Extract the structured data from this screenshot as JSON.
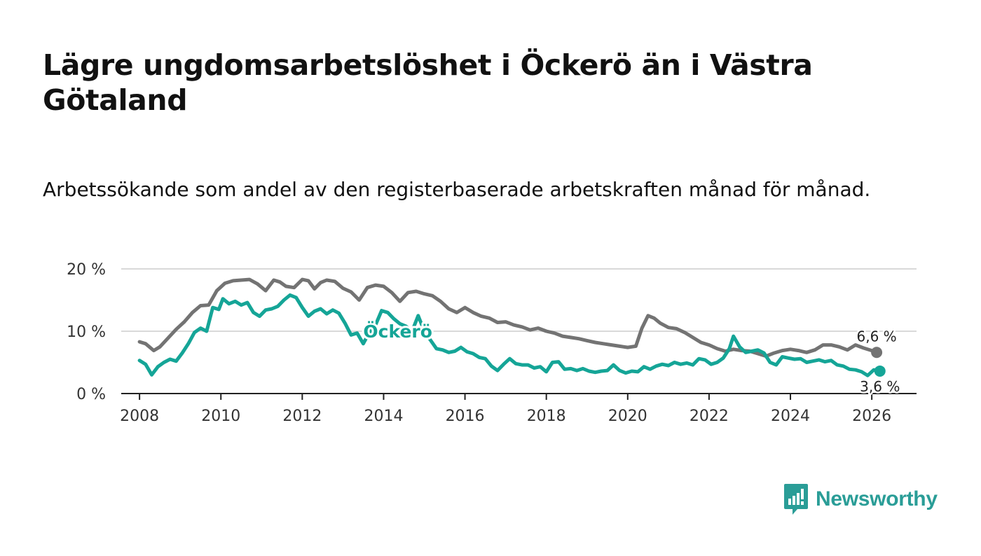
{
  "title": "Lägre ungdomsarbetslöshet i Öckerö än i Västra Götaland",
  "subtitle": "Arbetssökande som andel av den registerbaserade arbetskraften månad för månad.",
  "brand": {
    "name": "Newsworthy",
    "color": "#2a9d97"
  },
  "colors": {
    "gotaland": "#737373",
    "ockero": "#15a597",
    "grid": "#d9d9d9",
    "axis": "#222222"
  },
  "chart_data": {
    "type": "line",
    "title": "Lägre ungdomsarbetslöshet i Öckerö än i Västra Götaland",
    "subtitle": "Arbetssökande som andel av den registerbaserade arbetskraften månad för månad.",
    "xlabel": "",
    "ylabel": "",
    "xlim": [
      2007.55,
      2027.1
    ],
    "ylim": [
      0,
      20
    ],
    "grid": true,
    "legend": "inline",
    "x_ticks": [
      2008,
      2010,
      2012,
      2014,
      2016,
      2018,
      2020,
      2022,
      2024,
      2026
    ],
    "x_tick_labels": [
      "2008",
      "2010",
      "2012",
      "2014",
      "2016",
      "2018",
      "2020",
      "2022",
      "2024",
      "2026"
    ],
    "y_ticks": [
      0,
      10,
      20
    ],
    "y_tick_labels": [
      "0 %",
      "10 %",
      "20 %"
    ],
    "series": [
      {
        "name": "Västra Götaland",
        "color": "#737373",
        "end_label": "6,6 %",
        "label_at": [
          2010.0,
          2018.0
        ],
        "points": [
          [
            2008.0,
            8.3
          ],
          [
            2008.15,
            8.0
          ],
          [
            2008.35,
            6.9
          ],
          [
            2008.5,
            7.5
          ],
          [
            2008.7,
            8.9
          ],
          [
            2008.9,
            10.3
          ],
          [
            2009.1,
            11.5
          ],
          [
            2009.3,
            13.0
          ],
          [
            2009.5,
            14.1
          ],
          [
            2009.7,
            14.2
          ],
          [
            2009.9,
            16.5
          ],
          [
            2010.1,
            17.7
          ],
          [
            2010.3,
            18.1
          ],
          [
            2010.5,
            18.2
          ],
          [
            2010.7,
            18.3
          ],
          [
            2010.9,
            17.6
          ],
          [
            2011.1,
            16.5
          ],
          [
            2011.3,
            18.2
          ],
          [
            2011.45,
            17.9
          ],
          [
            2011.6,
            17.2
          ],
          [
            2011.8,
            17.0
          ],
          [
            2012.0,
            18.3
          ],
          [
            2012.15,
            18.1
          ],
          [
            2012.3,
            16.8
          ],
          [
            2012.45,
            17.8
          ],
          [
            2012.6,
            18.2
          ],
          [
            2012.8,
            18.0
          ],
          [
            2013.0,
            16.9
          ],
          [
            2013.2,
            16.3
          ],
          [
            2013.4,
            15.0
          ],
          [
            2013.6,
            17.0
          ],
          [
            2013.8,
            17.4
          ],
          [
            2014.0,
            17.2
          ],
          [
            2014.2,
            16.2
          ],
          [
            2014.4,
            14.8
          ],
          [
            2014.6,
            16.2
          ],
          [
            2014.8,
            16.4
          ],
          [
            2015.0,
            16.0
          ],
          [
            2015.2,
            15.7
          ],
          [
            2015.4,
            14.8
          ],
          [
            2015.6,
            13.6
          ],
          [
            2015.8,
            13.0
          ],
          [
            2016.0,
            13.8
          ],
          [
            2016.2,
            13.0
          ],
          [
            2016.4,
            12.4
          ],
          [
            2016.6,
            12.1
          ],
          [
            2016.8,
            11.4
          ],
          [
            2017.0,
            11.5
          ],
          [
            2017.2,
            11.0
          ],
          [
            2017.4,
            10.7
          ],
          [
            2017.6,
            10.2
          ],
          [
            2017.8,
            10.5
          ],
          [
            2018.0,
            10.0
          ],
          [
            2018.2,
            9.7
          ],
          [
            2018.4,
            9.2
          ],
          [
            2018.6,
            9.0
          ],
          [
            2018.8,
            8.8
          ],
          [
            2019.0,
            8.5
          ],
          [
            2019.2,
            8.2
          ],
          [
            2019.4,
            8.0
          ],
          [
            2019.6,
            7.8
          ],
          [
            2019.8,
            7.6
          ],
          [
            2020.0,
            7.4
          ],
          [
            2020.2,
            7.6
          ],
          [
            2020.35,
            10.5
          ],
          [
            2020.5,
            12.5
          ],
          [
            2020.65,
            12.1
          ],
          [
            2020.8,
            11.3
          ],
          [
            2021.0,
            10.6
          ],
          [
            2021.2,
            10.4
          ],
          [
            2021.4,
            9.8
          ],
          [
            2021.6,
            9.0
          ],
          [
            2021.8,
            8.2
          ],
          [
            2022.0,
            7.8
          ],
          [
            2022.2,
            7.2
          ],
          [
            2022.4,
            6.8
          ],
          [
            2022.6,
            7.1
          ],
          [
            2022.8,
            6.9
          ],
          [
            2023.0,
            6.8
          ],
          [
            2023.2,
            6.4
          ],
          [
            2023.4,
            6.0
          ],
          [
            2023.6,
            6.5
          ],
          [
            2023.8,
            6.9
          ],
          [
            2024.0,
            7.1
          ],
          [
            2024.2,
            6.9
          ],
          [
            2024.4,
            6.6
          ],
          [
            2024.6,
            7.0
          ],
          [
            2024.8,
            7.8
          ],
          [
            2025.0,
            7.8
          ],
          [
            2025.2,
            7.5
          ],
          [
            2025.4,
            7.0
          ],
          [
            2025.6,
            7.8
          ],
          [
            2025.8,
            7.3
          ],
          [
            2026.0,
            6.9
          ],
          [
            2026.12,
            6.6
          ]
        ]
      },
      {
        "name": "Öckerö",
        "color": "#15a597",
        "end_label": "3,6 %",
        "label_at": [
          2013.5,
          9.0
        ],
        "points": [
          [
            2008.0,
            5.3
          ],
          [
            2008.15,
            4.7
          ],
          [
            2008.3,
            3.0
          ],
          [
            2008.45,
            4.3
          ],
          [
            2008.6,
            5.0
          ],
          [
            2008.75,
            5.5
          ],
          [
            2008.9,
            5.2
          ],
          [
            2009.05,
            6.5
          ],
          [
            2009.2,
            8.0
          ],
          [
            2009.35,
            9.8
          ],
          [
            2009.5,
            10.5
          ],
          [
            2009.65,
            10.0
          ],
          [
            2009.8,
            13.8
          ],
          [
            2009.95,
            13.5
          ],
          [
            2010.05,
            15.2
          ],
          [
            2010.2,
            14.4
          ],
          [
            2010.35,
            14.8
          ],
          [
            2010.5,
            14.2
          ],
          [
            2010.65,
            14.6
          ],
          [
            2010.8,
            13.0
          ],
          [
            2010.95,
            12.4
          ],
          [
            2011.1,
            13.4
          ],
          [
            2011.25,
            13.6
          ],
          [
            2011.4,
            14.0
          ],
          [
            2011.55,
            15.0
          ],
          [
            2011.7,
            15.8
          ],
          [
            2011.85,
            15.4
          ],
          [
            2012.0,
            13.8
          ],
          [
            2012.15,
            12.4
          ],
          [
            2012.3,
            13.2
          ],
          [
            2012.45,
            13.6
          ],
          [
            2012.6,
            12.8
          ],
          [
            2012.75,
            13.4
          ],
          [
            2012.9,
            12.9
          ],
          [
            2013.05,
            11.3
          ],
          [
            2013.2,
            9.4
          ],
          [
            2013.35,
            9.7
          ],
          [
            2013.5,
            8.0
          ],
          [
            2013.65,
            9.8
          ],
          [
            2013.8,
            11.0
          ],
          [
            2013.95,
            13.3
          ],
          [
            2014.1,
            13.0
          ],
          [
            2014.25,
            12.0
          ],
          [
            2014.4,
            11.2
          ],
          [
            2014.55,
            10.8
          ],
          [
            2014.7,
            10.0
          ],
          [
            2014.85,
            12.5
          ],
          [
            2015.0,
            10.0
          ],
          [
            2015.15,
            8.6
          ],
          [
            2015.3,
            7.2
          ],
          [
            2015.45,
            7.0
          ],
          [
            2015.6,
            6.6
          ],
          [
            2015.75,
            6.8
          ],
          [
            2015.9,
            7.4
          ],
          [
            2016.05,
            6.7
          ],
          [
            2016.2,
            6.4
          ],
          [
            2016.35,
            5.8
          ],
          [
            2016.5,
            5.6
          ],
          [
            2016.65,
            4.4
          ],
          [
            2016.8,
            3.7
          ],
          [
            2016.95,
            4.7
          ],
          [
            2017.1,
            5.6
          ],
          [
            2017.25,
            4.8
          ],
          [
            2017.4,
            4.6
          ],
          [
            2017.55,
            4.6
          ],
          [
            2017.7,
            4.1
          ],
          [
            2017.85,
            4.3
          ],
          [
            2018.0,
            3.5
          ],
          [
            2018.15,
            5.0
          ],
          [
            2018.3,
            5.1
          ],
          [
            2018.45,
            3.9
          ],
          [
            2018.6,
            4.0
          ],
          [
            2018.75,
            3.7
          ],
          [
            2018.9,
            4.0
          ],
          [
            2019.05,
            3.6
          ],
          [
            2019.2,
            3.4
          ],
          [
            2019.35,
            3.6
          ],
          [
            2019.5,
            3.7
          ],
          [
            2019.65,
            4.6
          ],
          [
            2019.8,
            3.7
          ],
          [
            2019.95,
            3.3
          ],
          [
            2020.1,
            3.6
          ],
          [
            2020.25,
            3.5
          ],
          [
            2020.4,
            4.3
          ],
          [
            2020.55,
            3.9
          ],
          [
            2020.7,
            4.4
          ],
          [
            2020.85,
            4.7
          ],
          [
            2021.0,
            4.5
          ],
          [
            2021.15,
            5.0
          ],
          [
            2021.3,
            4.7
          ],
          [
            2021.45,
            4.9
          ],
          [
            2021.6,
            4.6
          ],
          [
            2021.75,
            5.6
          ],
          [
            2021.9,
            5.4
          ],
          [
            2022.05,
            4.7
          ],
          [
            2022.2,
            5.0
          ],
          [
            2022.35,
            5.7
          ],
          [
            2022.5,
            7.2
          ],
          [
            2022.6,
            9.2
          ],
          [
            2022.75,
            7.5
          ],
          [
            2022.9,
            6.6
          ],
          [
            2023.05,
            6.8
          ],
          [
            2023.2,
            7.0
          ],
          [
            2023.35,
            6.5
          ],
          [
            2023.5,
            5.0
          ],
          [
            2023.65,
            4.6
          ],
          [
            2023.8,
            5.9
          ],
          [
            2023.95,
            5.7
          ],
          [
            2024.1,
            5.5
          ],
          [
            2024.25,
            5.6
          ],
          [
            2024.4,
            5.0
          ],
          [
            2024.55,
            5.2
          ],
          [
            2024.7,
            5.4
          ],
          [
            2024.85,
            5.1
          ],
          [
            2025.0,
            5.3
          ],
          [
            2025.15,
            4.6
          ],
          [
            2025.3,
            4.4
          ],
          [
            2025.45,
            3.9
          ],
          [
            2025.6,
            3.8
          ],
          [
            2025.75,
            3.5
          ],
          [
            2025.9,
            2.9
          ],
          [
            2026.05,
            3.8
          ],
          [
            2026.2,
            3.6
          ]
        ]
      }
    ]
  }
}
